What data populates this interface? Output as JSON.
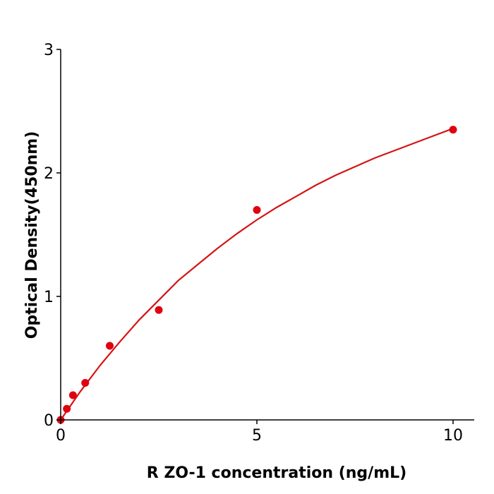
{
  "chart_data": {
    "type": "scatter",
    "title": "",
    "xlabel": "R  ZO-1 concentration (ng/mL)",
    "ylabel": "Optical Density(450nm)",
    "xlim": [
      0,
      10.5
    ],
    "ylim": [
      0,
      3
    ],
    "xticks": [
      0,
      5,
      10
    ],
    "yticks": [
      0,
      1,
      2,
      3
    ],
    "xtick_labels": [
      "0",
      "5",
      "10"
    ],
    "ytick_labels": [
      "0",
      "1",
      "2",
      "3"
    ],
    "grid": false,
    "color": "#e0000f",
    "line_color": "#d41414",
    "points": {
      "x": [
        0,
        0.156,
        0.3125,
        0.625,
        1.25,
        2.5,
        5,
        10
      ],
      "y": [
        0.0,
        0.09,
        0.2,
        0.3,
        0.6,
        0.89,
        1.7,
        2.35
      ]
    },
    "fit_curve": {
      "x": [
        0,
        0.5,
        1,
        1.5,
        2,
        2.5,
        3,
        3.5,
        4,
        4.5,
        5,
        5.5,
        6,
        6.5,
        7,
        7.5,
        8,
        8.5,
        9,
        9.5,
        10
      ],
      "y": [
        0.0,
        0.23,
        0.44,
        0.63,
        0.81,
        0.97,
        1.13,
        1.26,
        1.39,
        1.51,
        1.62,
        1.72,
        1.81,
        1.9,
        1.98,
        2.05,
        2.12,
        2.18,
        2.24,
        2.3,
        2.36
      ]
    }
  }
}
